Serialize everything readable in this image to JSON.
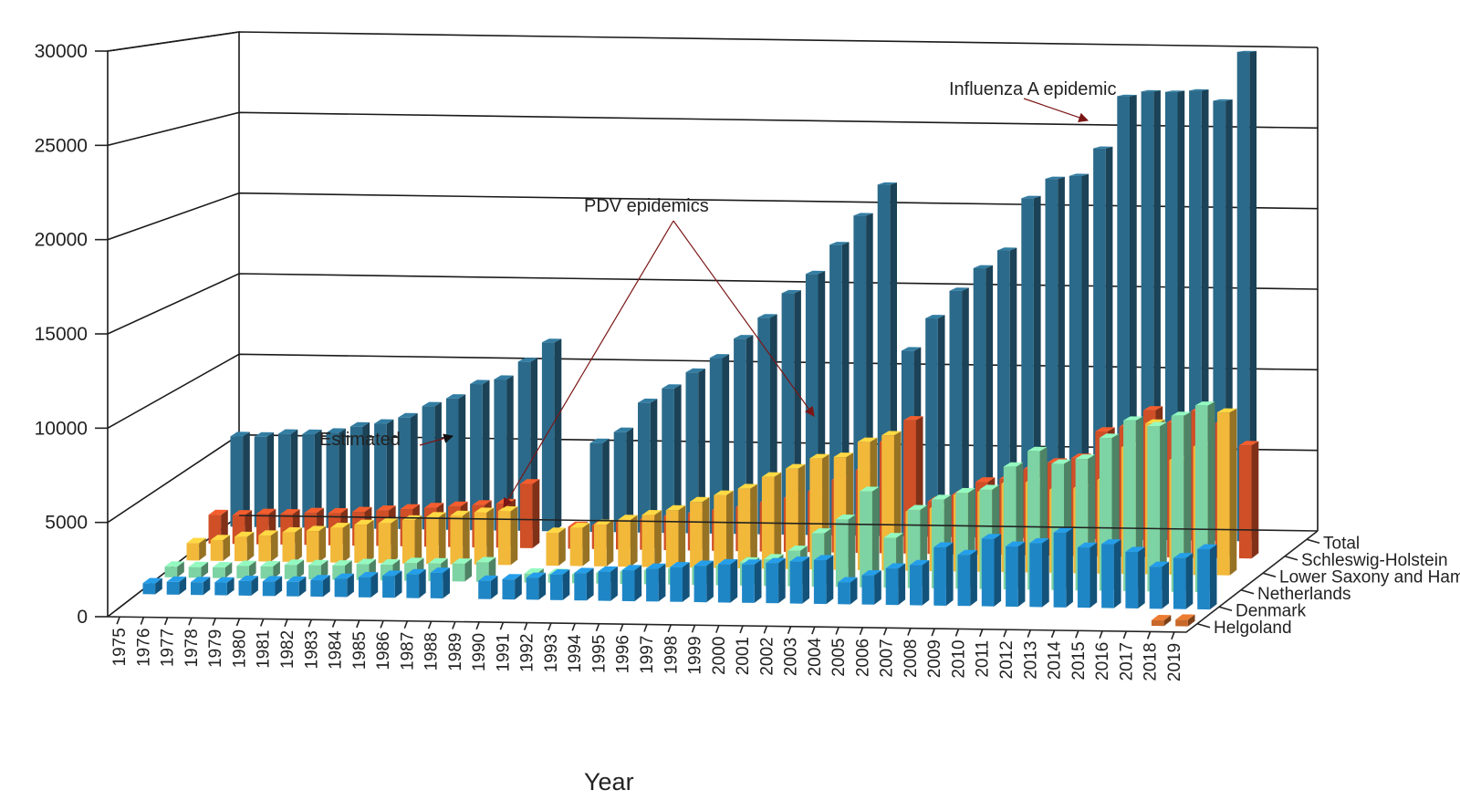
{
  "chart_data": {
    "type": "bar",
    "variant": "3d-stacked-depth",
    "title": "",
    "xlabel": "Year",
    "ylabel": "",
    "ylim": [
      0,
      30000
    ],
    "yticks": [
      "0",
      "5000",
      "10000",
      "15000",
      "20000",
      "25000",
      "30000"
    ],
    "categories": [
      "1975",
      "1976",
      "1977",
      "1978",
      "1979",
      "1980",
      "1981",
      "1982",
      "1983",
      "1984",
      "1985",
      "1986",
      "1987",
      "1988",
      "1989",
      "1990",
      "1991",
      "1992",
      "1993",
      "1994",
      "1995",
      "1996",
      "1997",
      "1998",
      "1999",
      "2000",
      "2001",
      "2002",
      "2003",
      "2004",
      "2005",
      "2006",
      "2007",
      "2008",
      "2009",
      "2010",
      "2011",
      "2012",
      "2013",
      "2014",
      "2015",
      "2016",
      "2017",
      "2018",
      "2019"
    ],
    "grid": true,
    "series": [
      {
        "name": "Helgoland",
        "color": "#c8692a",
        "values": [
          null,
          null,
          null,
          null,
          null,
          null,
          null,
          null,
          null,
          null,
          null,
          null,
          null,
          null,
          null,
          null,
          null,
          null,
          null,
          null,
          null,
          null,
          null,
          null,
          null,
          null,
          null,
          null,
          null,
          null,
          null,
          null,
          null,
          null,
          null,
          null,
          null,
          null,
          null,
          null,
          null,
          null,
          null,
          300,
          350
        ]
      },
      {
        "name": "Denmark",
        "color": "#1f86c6",
        "values": [
          600,
          700,
          700,
          700,
          800,
          800,
          800,
          900,
          1000,
          1100,
          1200,
          1300,
          1400,
          null,
          1000,
          1100,
          1200,
          1400,
          1500,
          1600,
          1700,
          1800,
          1900,
          2000,
          2100,
          2100,
          2200,
          2300,
          2400,
          1200,
          1600,
          2000,
          2200,
          3200,
          2800,
          3700,
          3300,
          3500,
          4100,
          3300,
          3500,
          3100,
          2300,
          2800,
          3300
        ]
      },
      {
        "name": "Netherlands",
        "color": "#7dd3a3",
        "values": [
          600,
          600,
          600,
          700,
          700,
          800,
          800,
          800,
          900,
          900,
          1000,
          1000,
          1000,
          1100,
          null,
          500,
          500,
          500,
          600,
          700,
          800,
          900,
          1000,
          1100,
          1300,
          1500,
          2000,
          3000,
          3800,
          5400,
          2800,
          4400,
          5000,
          5400,
          5600,
          6900,
          7800,
          7100,
          7400,
          8600,
          9600,
          9300,
          9900,
          10500,
          null
        ]
      },
      {
        "name": "Lower Saxony and Hamburg",
        "color": "#f2b83a",
        "values": [
          1000,
          1200,
          1400,
          1500,
          1700,
          1800,
          2000,
          2200,
          2300,
          2500,
          2700,
          2800,
          3000,
          3100,
          null,
          1900,
          2200,
          2400,
          2700,
          3000,
          3300,
          3800,
          4200,
          4600,
          5300,
          5800,
          6400,
          6500,
          7400,
          7800,
          3400,
          3600,
          4400,
          4600,
          5100,
          5200,
          4800,
          4900,
          5400,
          7300,
          8700,
          6600,
          7400,
          9400,
          null
        ]
      },
      {
        "name": "Schleswig-Holstein",
        "color": "#cf4f27",
        "values": [
          1700,
          1700,
          1800,
          1800,
          1900,
          1900,
          2000,
          2100,
          2200,
          2300,
          2400,
          2500,
          2600,
          3800,
          null,
          1300,
          1400,
          1600,
          1800,
          2000,
          2200,
          2400,
          2600,
          2900,
          3200,
          3600,
          4300,
          4900,
          6600,
          7900,
          3100,
          3500,
          4300,
          4500,
          5100,
          5500,
          5800,
          7400,
          7700,
          8700,
          8000,
          8700,
          8000,
          6700,
          null
        ]
      },
      {
        "name": "Total",
        "color": "#2b6a8a",
        "values": [
          5500,
          5500,
          5700,
          5700,
          5800,
          6200,
          6400,
          6800,
          7500,
          8000,
          8900,
          9200,
          10300,
          11500,
          null,
          5400,
          6100,
          7900,
          8800,
          9800,
          10700,
          11900,
          13200,
          14700,
          15900,
          17700,
          19500,
          21400,
          11300,
          13300,
          15000,
          16400,
          17500,
          20700,
          21900,
          22100,
          23800,
          27000,
          27300,
          27300,
          27400,
          26800,
          29800,
          null,
          null
        ]
      }
    ],
    "annotations": [
      {
        "text": "Influenza A epidemic"
      },
      {
        "text": "PDV epidemics"
      },
      {
        "text": "Estimated"
      }
    ]
  }
}
